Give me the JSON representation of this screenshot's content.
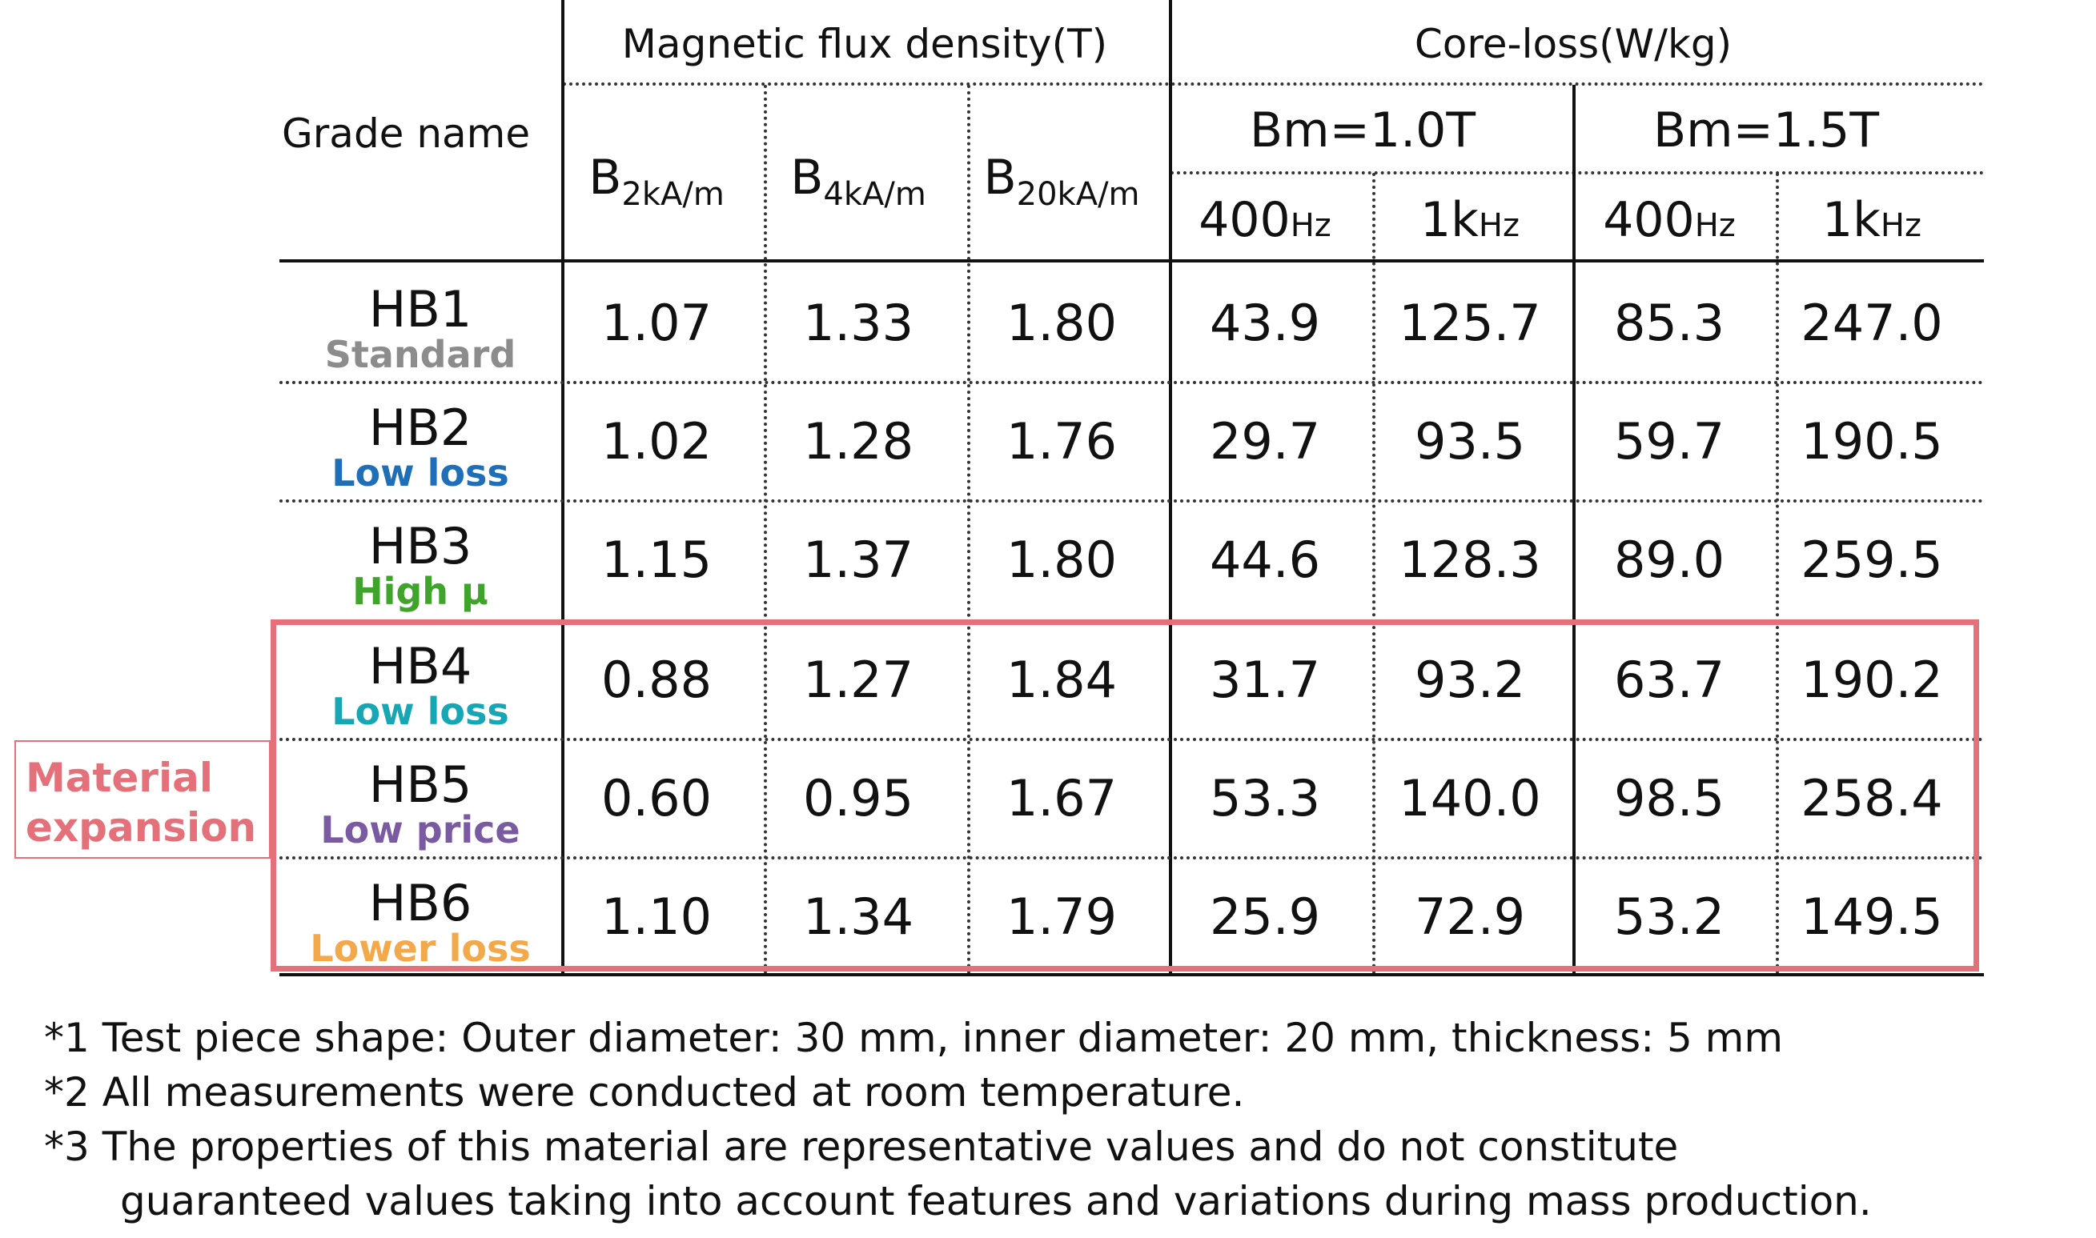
{
  "header": {
    "grade_name": "Grade name",
    "flux_density": "Magnetic flux density(T)",
    "core_loss": "Core-loss(W/kg)",
    "bm1": "Bm=1.0T",
    "bm2": "Bm=1.5T",
    "b_symbol": "B",
    "b_subs": [
      "2kA/m",
      "4kA/m",
      "20kA/m"
    ],
    "freqs": [
      {
        "num": "400",
        "unit": "Hz"
      },
      {
        "num": "1k",
        "unit": "Hz"
      },
      {
        "num": "400",
        "unit": "Hz"
      },
      {
        "num": "1k",
        "unit": "Hz"
      }
    ]
  },
  "rows": [
    {
      "grade": "HB1",
      "tag": "Standard",
      "tag_color": "#8c8c8c",
      "values": [
        "1.07",
        "1.33",
        "1.80",
        "43.9",
        "125.7",
        "85.3",
        "247.0"
      ]
    },
    {
      "grade": "HB2",
      "tag": "Low loss",
      "tag_color": "#1f6fb8",
      "values": [
        "1.02",
        "1.28",
        "1.76",
        "29.7",
        "93.5",
        "59.7",
        "190.5"
      ]
    },
    {
      "grade": "HB3",
      "tag": "High μ",
      "tag_color": "#3ea42a",
      "values": [
        "1.15",
        "1.37",
        "1.80",
        "44.6",
        "128.3",
        "89.0",
        "259.5"
      ]
    },
    {
      "grade": "HB4",
      "tag": "Low loss",
      "tag_color": "#16a6b4",
      "values": [
        "0.88",
        "1.27",
        "1.84",
        "31.7",
        "93.2",
        "63.7",
        "190.2"
      ]
    },
    {
      "grade": "HB5",
      "tag": "Low price",
      "tag_color": "#7a5aa0",
      "values": [
        "0.60",
        "0.95",
        "1.67",
        "53.3",
        "140.0",
        "98.5",
        "258.4"
      ]
    },
    {
      "grade": "HB6",
      "tag": "Lower loss",
      "tag_color": "#f3a94a",
      "values": [
        "1.10",
        "1.34",
        "1.79",
        "25.9",
        "72.9",
        "53.2",
        "149.5"
      ]
    }
  ],
  "expansion_label": [
    "Material",
    "expansion"
  ],
  "colors": {
    "highlight": "#e4707a"
  },
  "notes": [
    "*1 Test piece shape: Outer diameter: 30 mm, inner diameter: 20 mm, thickness: 5 mm",
    "*2 All measurements were conducted at room temperature.",
    "*3 The properties of this material are representative values and do not constitute",
    "guaranteed values taking into account features and variations during mass production."
  ]
}
